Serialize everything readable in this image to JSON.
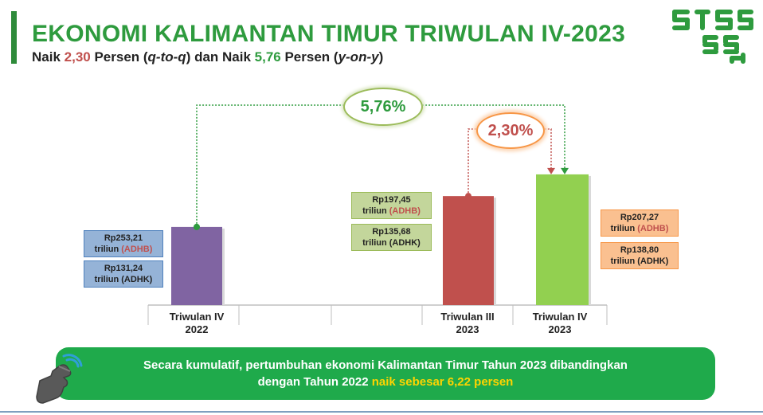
{
  "header": {
    "title": "EKONOMI KALIMANTAN TIMUR TRIWULAN IV-2023",
    "subtitle_prefix": "Naik ",
    "qtoq_value": "2,30",
    "subtitle_mid1": " Persen (",
    "qtoq_label": "q-to-q",
    "subtitle_mid2": ") dan Naik ",
    "yony_value": "5,76",
    "subtitle_mid3": " Persen (",
    "yony_label": "y-on-y",
    "subtitle_end": ")"
  },
  "growth": {
    "yony": "5,76%",
    "qtoq": "2,30%"
  },
  "annotations": {
    "tw4_2022_adhb_value": "Rp253,21",
    "tw4_2022_adhb_unit": "triliun ",
    "tw4_2022_adhk_value": "Rp131,24",
    "tw4_2022_adhk_unit": "triliun (ADHK)",
    "tw3_2023_adhb_value": "Rp197,45",
    "tw3_2023_adhb_unit": "triliun ",
    "tw3_2023_adhk_value": "Rp135,68",
    "tw3_2023_adhk_unit": "triliun (ADHK)",
    "tw4_2023_adhb_value": "Rp207,27",
    "tw4_2023_adhb_unit": "triliun ",
    "tw4_2023_adhk_value": "Rp138,80",
    "tw4_2023_adhk_unit": "triliun (ADHK)",
    "adhb_tag": "(ADHB)"
  },
  "chart_data": {
    "type": "bar",
    "categories": [
      "Triwulan IV 2022",
      "Triwulan III 2023",
      "Triwulan IV 2023"
    ],
    "x_tick_labels": [
      {
        "line1": "Triwulan IV",
        "line2": "2022"
      },
      {
        "line1": "Triwulan III",
        "line2": "2023"
      },
      {
        "line1": "Triwulan IV",
        "line2": "2023"
      }
    ],
    "series": [
      {
        "name": "ADHK",
        "values": [
          131.24,
          135.68,
          138.8
        ]
      }
    ],
    "adhb_values": [
      253.21,
      197.45,
      207.27
    ],
    "bar_colors": [
      "#8064a2",
      "#c0504d",
      "#92d050"
    ],
    "ylim": [
      120,
      142
    ],
    "growth_yoy_percent": 5.76,
    "growth_qoq_percent": 2.3,
    "colors": {
      "yoy_connector": "#2e9b3e",
      "qoq_connector": "#c0504d"
    }
  },
  "banner": {
    "line1": "Secara kumulatif, pertumbuhan ekonomi Kalimantan Timur Tahun 2023 dibandingkan",
    "line2_prefix": "dengan Tahun 2022 ",
    "line2_highlight": "naik sebesar 6,22 persen"
  },
  "colors": {
    "title_green": "#2e9b3e",
    "banner_green": "#1faa4b",
    "highlight_yellow": "#ffd400",
    "accent_red": "#c0504d"
  },
  "icons": {
    "logo": "bps-se-logo",
    "hand": "pointing-hand-icon"
  }
}
